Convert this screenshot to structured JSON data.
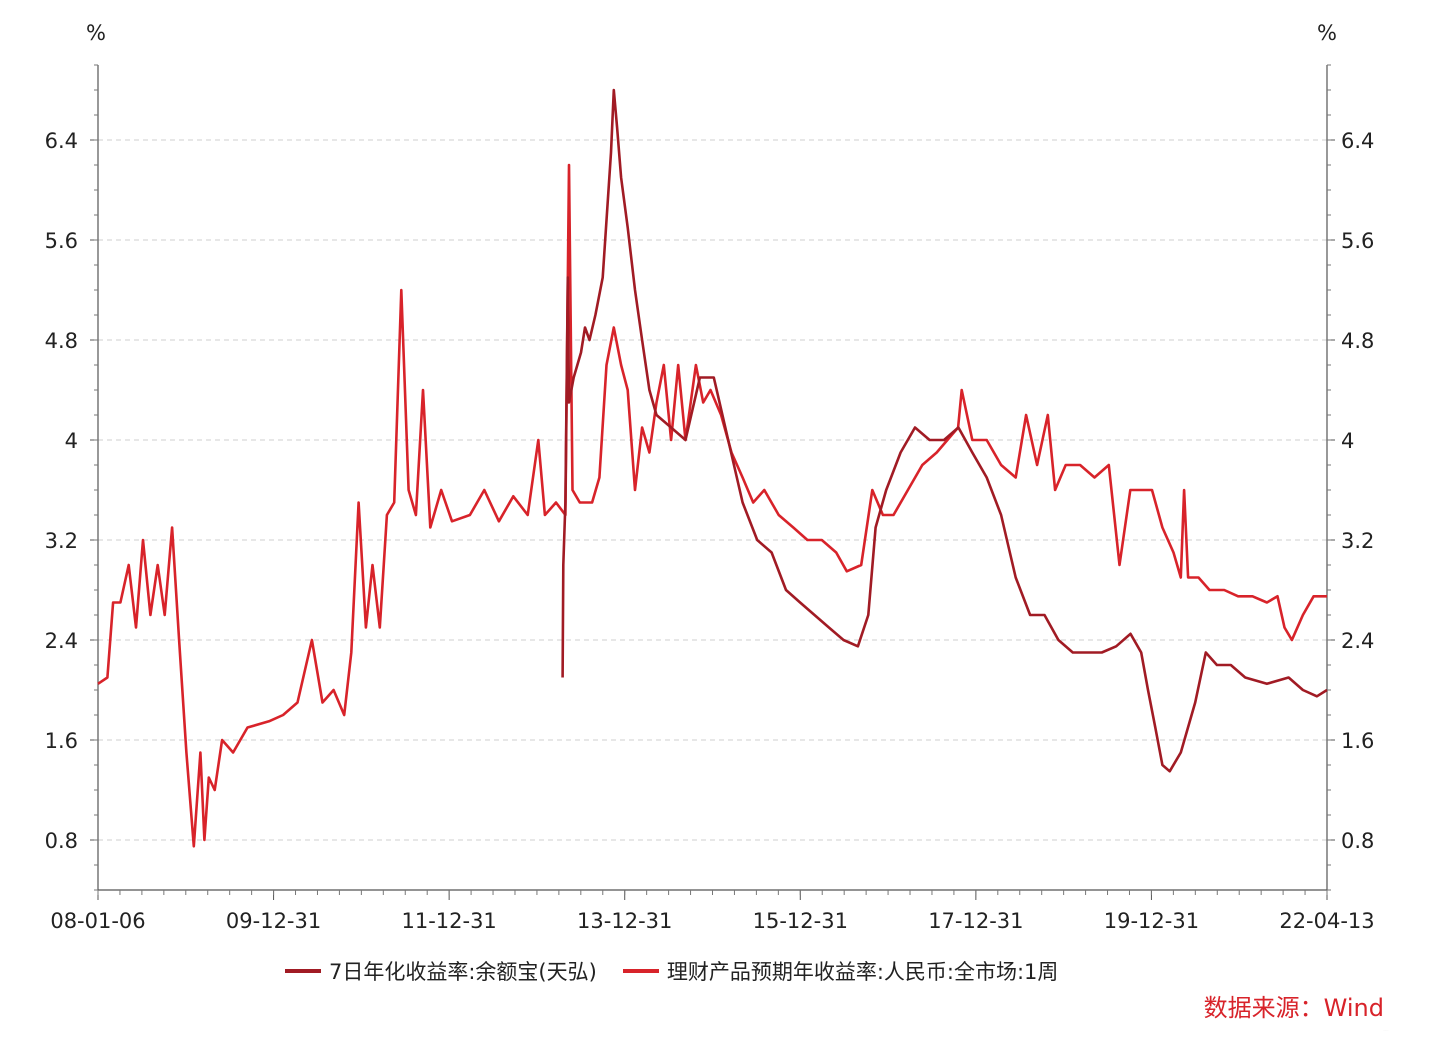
{
  "chart_data": {
    "type": "line",
    "left_unit": "%",
    "right_unit": "%",
    "x_ticks": [
      "08-01-06",
      "09-12-31",
      "11-12-31",
      "13-12-31",
      "15-12-31",
      "17-12-31",
      "19-12-31",
      "22-04-13"
    ],
    "x_range": [
      "2008-01-06",
      "2022-04-13"
    ],
    "y_ticks": [
      "0.8",
      "1.6",
      "2.4",
      "3.2",
      "4",
      "4.8",
      "5.6",
      "6.4"
    ],
    "ylim": [
      0.4,
      7.0
    ],
    "grid": "horizontal dashed",
    "series": [
      {
        "name": "7日年化收益率:余额宝(天弘)",
        "color": "#a11b24",
        "points": [
          [
            "2013-05-29",
            2.1
          ],
          [
            "2013-06-01",
            3.0
          ],
          [
            "2013-06-10",
            3.5
          ],
          [
            "2013-06-20",
            5.3
          ],
          [
            "2013-06-25",
            4.3
          ],
          [
            "2013-07-15",
            4.5
          ],
          [
            "2013-08-15",
            4.7
          ],
          [
            "2013-09-01",
            4.9
          ],
          [
            "2013-09-20",
            4.8
          ],
          [
            "2013-10-15",
            5.0
          ],
          [
            "2013-11-15",
            5.3
          ],
          [
            "2013-12-20",
            6.3
          ],
          [
            "2014-01-01",
            6.8
          ],
          [
            "2014-01-15",
            6.5
          ],
          [
            "2014-02-01",
            6.1
          ],
          [
            "2014-03-01",
            5.7
          ],
          [
            "2014-04-01",
            5.2
          ],
          [
            "2014-05-01",
            4.8
          ],
          [
            "2014-06-01",
            4.4
          ],
          [
            "2014-07-01",
            4.2
          ],
          [
            "2014-09-01",
            4.1
          ],
          [
            "2014-11-01",
            4.0
          ],
          [
            "2015-01-01",
            4.5
          ],
          [
            "2015-03-01",
            4.5
          ],
          [
            "2015-05-01",
            4.0
          ],
          [
            "2015-07-01",
            3.5
          ],
          [
            "2015-09-01",
            3.2
          ],
          [
            "2015-11-01",
            3.1
          ],
          [
            "2016-01-01",
            2.8
          ],
          [
            "2016-03-01",
            2.7
          ],
          [
            "2016-05-01",
            2.6
          ],
          [
            "2016-07-01",
            2.5
          ],
          [
            "2016-09-01",
            2.4
          ],
          [
            "2016-11-01",
            2.35
          ],
          [
            "2016-12-15",
            2.6
          ],
          [
            "2017-01-15",
            3.3
          ],
          [
            "2017-03-01",
            3.6
          ],
          [
            "2017-05-01",
            3.9
          ],
          [
            "2017-07-01",
            4.1
          ],
          [
            "2017-09-01",
            4.0
          ],
          [
            "2017-11-01",
            4.0
          ],
          [
            "2018-01-01",
            4.1
          ],
          [
            "2018-03-01",
            3.9
          ],
          [
            "2018-05-01",
            3.7
          ],
          [
            "2018-07-01",
            3.4
          ],
          [
            "2018-09-01",
            2.9
          ],
          [
            "2018-11-01",
            2.6
          ],
          [
            "2019-01-01",
            2.6
          ],
          [
            "2019-03-01",
            2.4
          ],
          [
            "2019-05-01",
            2.3
          ],
          [
            "2019-07-01",
            2.3
          ],
          [
            "2019-09-01",
            2.3
          ],
          [
            "2019-11-01",
            2.35
          ],
          [
            "2020-01-01",
            2.45
          ],
          [
            "2020-02-15",
            2.3
          ],
          [
            "2020-03-15",
            2.0
          ],
          [
            "2020-04-15",
            1.7
          ],
          [
            "2020-05-15",
            1.4
          ],
          [
            "2020-06-15",
            1.35
          ],
          [
            "2020-08-01",
            1.5
          ],
          [
            "2020-10-01",
            1.9
          ],
          [
            "2020-11-15",
            2.3
          ],
          [
            "2021-01-01",
            2.2
          ],
          [
            "2021-03-01",
            2.2
          ],
          [
            "2021-05-01",
            2.1
          ],
          [
            "2021-08-01",
            2.05
          ],
          [
            "2021-11-01",
            2.1
          ],
          [
            "2022-01-01",
            2.0
          ],
          [
            "2022-03-01",
            1.95
          ],
          [
            "2022-04-13",
            2.0
          ]
        ]
      },
      {
        "name": "理财产品预期年收益率:人民币:全市场:1周",
        "color": "#d8232a",
        "points": [
          [
            "2008-01-06",
            2.05
          ],
          [
            "2008-02-15",
            2.1
          ],
          [
            "2008-03-10",
            2.7
          ],
          [
            "2008-04-10",
            2.7
          ],
          [
            "2008-05-15",
            3.0
          ],
          [
            "2008-06-15",
            2.5
          ],
          [
            "2008-07-15",
            3.2
          ],
          [
            "2008-08-15",
            2.6
          ],
          [
            "2008-09-15",
            3.0
          ],
          [
            "2008-10-15",
            2.6
          ],
          [
            "2008-11-15",
            3.3
          ],
          [
            "2008-12-15",
            2.4
          ],
          [
            "2009-01-15",
            1.5
          ],
          [
            "2009-02-15",
            0.75
          ],
          [
            "2009-03-15",
            1.5
          ],
          [
            "2009-04-01",
            0.8
          ],
          [
            "2009-04-20",
            1.3
          ],
          [
            "2009-05-15",
            1.2
          ],
          [
            "2009-06-15",
            1.6
          ],
          [
            "2009-08-01",
            1.5
          ],
          [
            "2009-10-01",
            1.7
          ],
          [
            "2009-12-31",
            1.75
          ],
          [
            "2010-03-01",
            1.8
          ],
          [
            "2010-05-01",
            1.9
          ],
          [
            "2010-07-01",
            2.4
          ],
          [
            "2010-08-15",
            1.9
          ],
          [
            "2010-10-01",
            2.0
          ],
          [
            "2010-11-15",
            1.8
          ],
          [
            "2010-12-15",
            2.3
          ],
          [
            "2011-01-15",
            3.5
          ],
          [
            "2011-02-15",
            2.5
          ],
          [
            "2011-03-15",
            3.0
          ],
          [
            "2011-04-15",
            2.5
          ],
          [
            "2011-05-15",
            3.4
          ],
          [
            "2011-06-15",
            3.5
          ],
          [
            "2011-07-15",
            5.2
          ],
          [
            "2011-08-15",
            3.6
          ],
          [
            "2011-09-15",
            3.4
          ],
          [
            "2011-10-15",
            4.4
          ],
          [
            "2011-11-15",
            3.3
          ],
          [
            "2011-12-31",
            3.6
          ],
          [
            "2012-02-15",
            3.35
          ],
          [
            "2012-05-01",
            3.4
          ],
          [
            "2012-07-01",
            3.6
          ],
          [
            "2012-09-01",
            3.35
          ],
          [
            "2012-11-01",
            3.55
          ],
          [
            "2013-01-01",
            3.4
          ],
          [
            "2013-02-15",
            4.0
          ],
          [
            "2013-03-15",
            3.4
          ],
          [
            "2013-05-01",
            3.5
          ],
          [
            "2013-06-10",
            3.4
          ],
          [
            "2013-06-25",
            6.2
          ],
          [
            "2013-07-10",
            3.6
          ],
          [
            "2013-08-10",
            3.5
          ],
          [
            "2013-10-01",
            3.5
          ],
          [
            "2013-11-01",
            3.7
          ],
          [
            "2013-12-01",
            4.6
          ],
          [
            "2014-01-01",
            4.9
          ],
          [
            "2014-02-01",
            4.6
          ],
          [
            "2014-03-01",
            4.4
          ],
          [
            "2014-04-01",
            3.6
          ],
          [
            "2014-05-01",
            4.1
          ],
          [
            "2014-06-01",
            3.9
          ],
          [
            "2014-07-01",
            4.3
          ],
          [
            "2014-08-01",
            4.6
          ],
          [
            "2014-09-01",
            4.0
          ],
          [
            "2014-10-01",
            4.6
          ],
          [
            "2014-11-01",
            4.0
          ],
          [
            "2014-12-15",
            4.6
          ],
          [
            "2015-01-15",
            4.3
          ],
          [
            "2015-02-15",
            4.4
          ],
          [
            "2015-04-01",
            4.2
          ],
          [
            "2015-05-15",
            3.9
          ],
          [
            "2015-07-01",
            3.7
          ],
          [
            "2015-08-15",
            3.5
          ],
          [
            "2015-10-01",
            3.6
          ],
          [
            "2015-12-01",
            3.4
          ],
          [
            "2016-02-01",
            3.3
          ],
          [
            "2016-04-01",
            3.2
          ],
          [
            "2016-06-01",
            3.2
          ],
          [
            "2016-08-01",
            3.1
          ],
          [
            "2016-09-15",
            2.95
          ],
          [
            "2016-11-15",
            3.0
          ],
          [
            "2017-01-01",
            3.6
          ],
          [
            "2017-02-15",
            3.4
          ],
          [
            "2017-04-01",
            3.4
          ],
          [
            "2017-06-01",
            3.6
          ],
          [
            "2017-08-01",
            3.8
          ],
          [
            "2017-10-01",
            3.9
          ],
          [
            "2017-12-31",
            4.1
          ],
          [
            "2018-01-15",
            4.4
          ],
          [
            "2018-03-01",
            4.0
          ],
          [
            "2018-05-01",
            4.0
          ],
          [
            "2018-07-01",
            3.8
          ],
          [
            "2018-09-01",
            3.7
          ],
          [
            "2018-10-15",
            4.2
          ],
          [
            "2018-12-01",
            3.8
          ],
          [
            "2019-01-15",
            4.2
          ],
          [
            "2019-02-15",
            3.6
          ],
          [
            "2019-04-01",
            3.8
          ],
          [
            "2019-06-01",
            3.8
          ],
          [
            "2019-08-01",
            3.7
          ],
          [
            "2019-10-01",
            3.8
          ],
          [
            "2019-11-15",
            3.0
          ],
          [
            "2019-12-31",
            3.6
          ],
          [
            "2020-02-15",
            3.6
          ],
          [
            "2020-04-01",
            3.6
          ],
          [
            "2020-05-15",
            3.3
          ],
          [
            "2020-07-01",
            3.1
          ],
          [
            "2020-08-01",
            2.9
          ],
          [
            "2020-08-15",
            3.6
          ],
          [
            "2020-09-01",
            2.9
          ],
          [
            "2020-10-15",
            2.9
          ],
          [
            "2020-12-01",
            2.8
          ],
          [
            "2021-02-01",
            2.8
          ],
          [
            "2021-04-01",
            2.75
          ],
          [
            "2021-06-01",
            2.75
          ],
          [
            "2021-08-01",
            2.7
          ],
          [
            "2021-09-15",
            2.75
          ],
          [
            "2021-10-15",
            2.5
          ],
          [
            "2021-11-15",
            2.4
          ],
          [
            "2022-01-01",
            2.6
          ],
          [
            "2022-02-15",
            2.75
          ],
          [
            "2022-04-13",
            2.75
          ]
        ]
      }
    ]
  },
  "legend": {
    "series_1_label": "7日年化收益率:余额宝(天弘)",
    "series_2_label": "理财产品预期年收益率:人民币:全市场:1周"
  },
  "source_label": "数据来源：Wind",
  "watermark": "Wind",
  "colors": {
    "series_1": "#a11b24",
    "series_2": "#d8232a",
    "source": "#d8232a"
  }
}
